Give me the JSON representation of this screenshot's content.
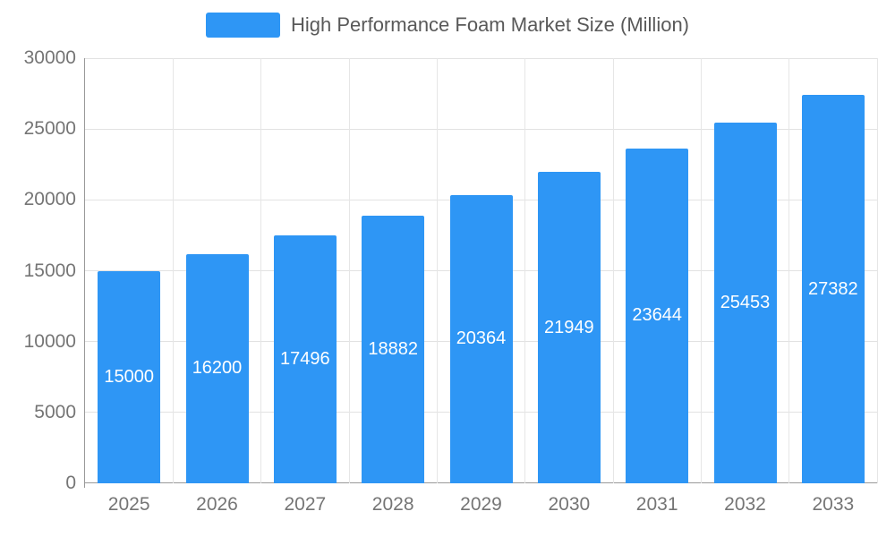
{
  "chart_data": {
    "type": "bar",
    "title": "High Performance Foam Market Size (Million)",
    "categories": [
      "2025",
      "2026",
      "2027",
      "2028",
      "2029",
      "2030",
      "2031",
      "2032",
      "2033"
    ],
    "values": [
      15000,
      16200,
      17496,
      18882,
      20364,
      21949,
      23644,
      25453,
      27382
    ],
    "value_labels": [
      "15000",
      "16200",
      "17496",
      "18882",
      "20364",
      "21949",
      "23644",
      "25453",
      "27382"
    ],
    "xlabel": "",
    "ylabel": "",
    "ylim": [
      0,
      30000
    ],
    "yticks": [
      0,
      5000,
      10000,
      15000,
      20000,
      25000,
      30000
    ],
    "grid": "on",
    "legend_position": "top-center",
    "bar_color": "#2e96f5",
    "bar_label_color": "#ffffff",
    "axis_text_color": "#757575",
    "legend_text_color": "#595959",
    "gridline_color": "#e2e2e2"
  }
}
